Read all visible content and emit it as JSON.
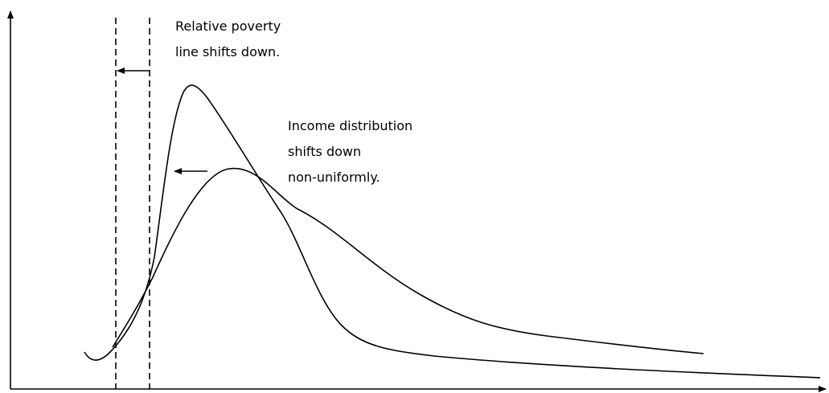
{
  "annotations": [
    {
      "lines": [
        "Relative poverty",
        "line shifts down."
      ]
    },
    {
      "lines": [
        "Income distribution",
        "shifts down",
        "non-uniformly."
      ]
    }
  ]
}
